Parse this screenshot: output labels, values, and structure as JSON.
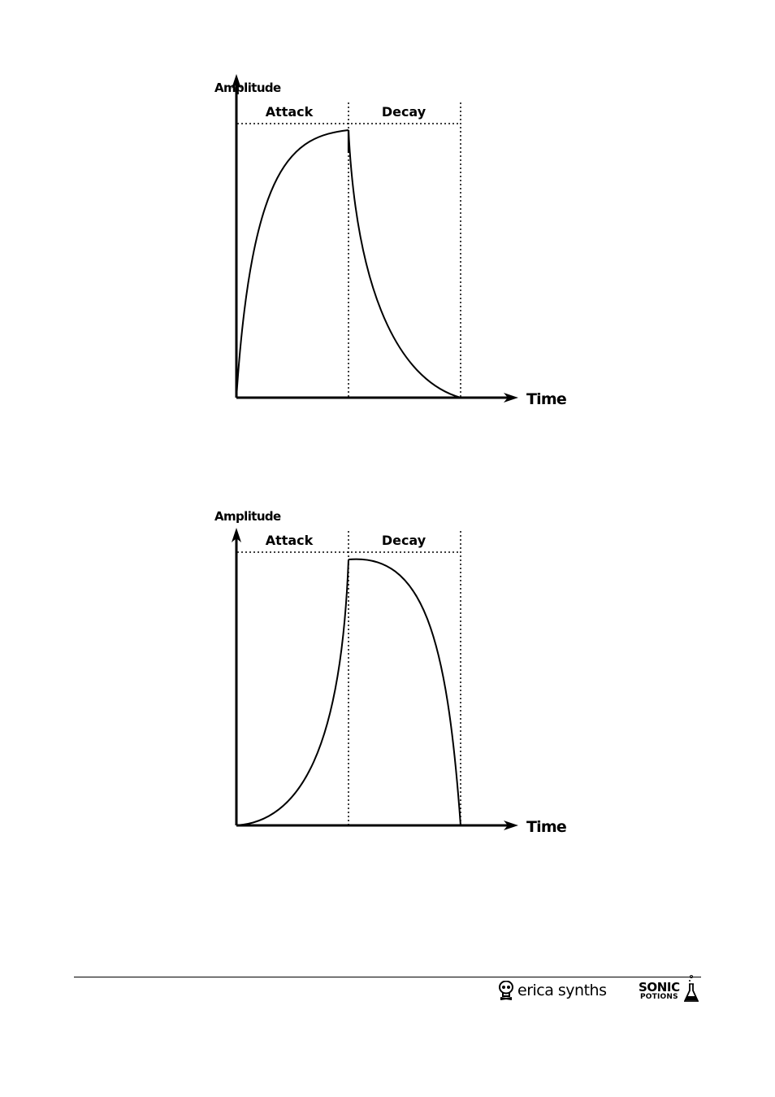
{
  "diagrams": [
    {
      "y_axis_label": "Amplitude",
      "x_axis_label": "Time",
      "sections": [
        "Attack",
        "Decay"
      ]
    },
    {
      "y_axis_label": "Amplitude",
      "x_axis_label": "Time",
      "sections": [
        "Attack",
        "Decay"
      ]
    }
  ],
  "footer": {
    "brand_erica": "erica synths",
    "brand_sonic_line1": "SONIC",
    "brand_sonic_line2": "POTIONS"
  }
}
